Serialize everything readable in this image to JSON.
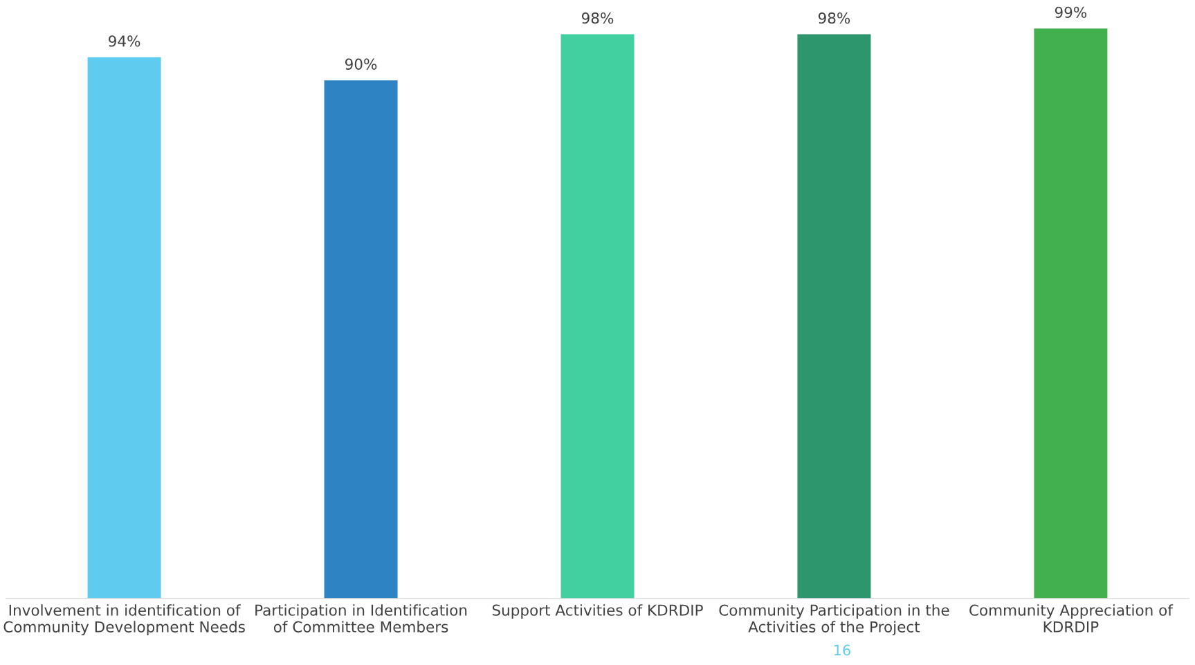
{
  "chart_data": {
    "type": "bar",
    "categories": [
      "Involvement in identification of\nCommunity Development Needs",
      "Participation in Identification\nof Committee Members",
      "Support Activities of KDRDIP",
      "Community Participation in the\nActivities of the Project",
      "Community Appreciation of\nKDRDIP"
    ],
    "values": [
      94,
      90,
      98,
      98,
      99
    ],
    "colors": [
      "#5fcbef",
      "#2e83c3",
      "#43d0a0",
      "#2d966c",
      "#42b04e"
    ],
    "value_labels": [
      "94%",
      "90%",
      "98%",
      "98%",
      "99%"
    ],
    "tick_labels": "x",
    "grid": false,
    "annotations": [
      "16"
    ]
  }
}
